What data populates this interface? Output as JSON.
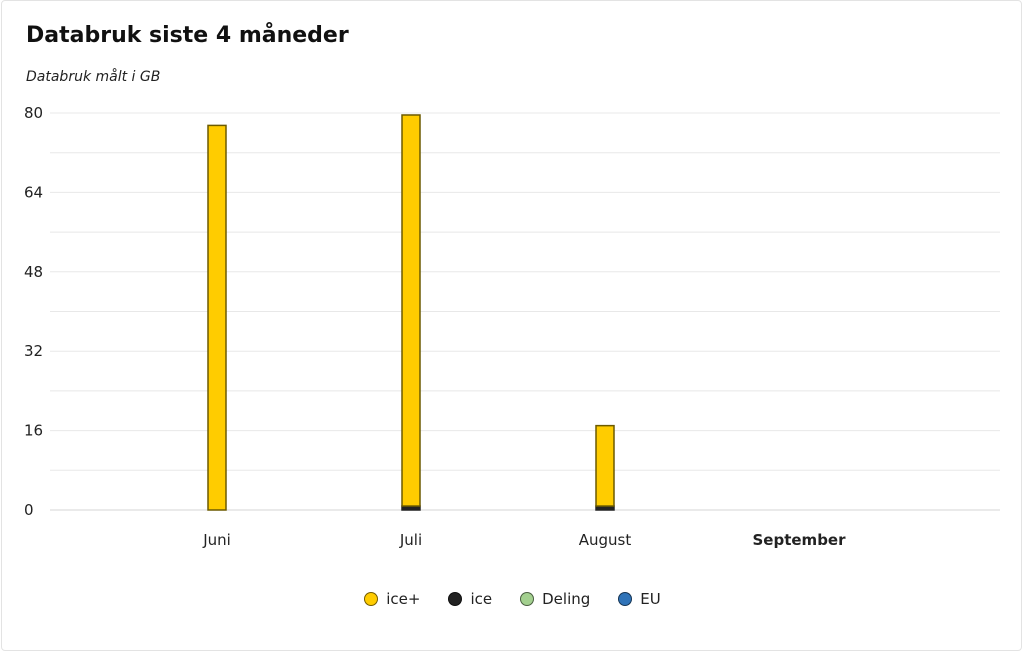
{
  "header": {
    "title": "Databruk siste 4 måneder",
    "subtitle": "Databruk målt i GB"
  },
  "colors": {
    "ice_plus": "#ffcc00",
    "ice_plus_border": "#6b5a00",
    "ice": "#222222",
    "deling": "#a3d08f",
    "eu": "#2f73b8",
    "grid": "#e8e8e8"
  },
  "legend": [
    {
      "label": "ice+",
      "color": "#ffcc00"
    },
    {
      "label": "ice",
      "color": "#222222"
    },
    {
      "label": "Deling",
      "color": "#a3d08f"
    },
    {
      "label": "EU",
      "color": "#2f73b8"
    }
  ],
  "chart_data": {
    "type": "bar",
    "stacked": true,
    "title": "Databruk siste 4 måneder",
    "subtitle": "Databruk målt i GB",
    "categories": [
      "Juni",
      "Juli",
      "August",
      "September"
    ],
    "highlighted_category": "September",
    "yticks": [
      0,
      16,
      32,
      48,
      64,
      80
    ],
    "ylim": [
      0,
      80
    ],
    "grid": true,
    "legend_position": "bottom",
    "series": [
      {
        "name": "ice",
        "values": [
          0,
          0.8,
          0.8,
          0
        ]
      },
      {
        "name": "ice+",
        "values": [
          77.5,
          78.8,
          16.2,
          0
        ]
      },
      {
        "name": "Deling",
        "values": [
          0,
          0,
          0,
          0
        ]
      },
      {
        "name": "EU",
        "values": [
          0,
          0,
          0,
          0
        ]
      }
    ]
  }
}
